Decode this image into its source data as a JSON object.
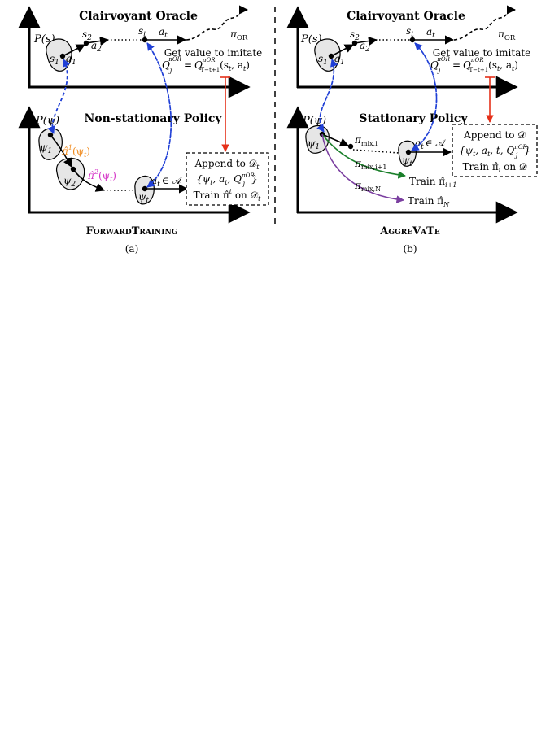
{
  "panel_a": {
    "oracle_title": "Clairvoyant Oracle",
    "oracle_axis_label": "P(s)",
    "s1": "s",
    "s1_sub": "1",
    "a1": "a",
    "a1_sub": "1",
    "s2": "s",
    "s2_sub": "2",
    "a2": "a",
    "a2_sub": "2",
    "st": "s",
    "st_sub": "t",
    "at": "a",
    "at_sub": "t",
    "pi_or": "π",
    "pi_or_sub": "OR",
    "get_value_text": "Get value to imitate",
    "q_text_lhs": "Q",
    "q_text_lhs_sub": "j",
    "q_text_lhs_sup": "πOR",
    "q_text_eq": "=",
    "q_text_rhs": "Q",
    "q_text_rhs_sub": "T−t+1",
    "q_text_rhs_sup": "πOR",
    "q_text_args": "(s",
    "q_text_args_sub": "t",
    "q_text_args_end": ", a",
    "q_text_args_sub2": "t",
    "q_text_close": ")",
    "policy_title": "Non-stationary Policy",
    "policy_axis_label": "P(ψ)",
    "psi1": "ψ",
    "psi1_sub": "1",
    "psi2": "ψ",
    "psi2_sub": "2",
    "psit": "ψ",
    "psit_sub": "t",
    "pi1": "π̂",
    "pi1_sup": "1",
    "pi1_arg": "(ψ",
    "pi1_arg_sub": "t",
    "pi1_close": ")",
    "pi2": "π̂",
    "pi2_sup": "2",
    "pi2_arg": "(ψ",
    "pi2_arg_sub": "t",
    "pi2_close": ")",
    "at_in_a": "a",
    "at_in_a_sub": "t",
    "at_in_a_rest": "∈ 𝒜",
    "box_line1": "Append to 𝒟",
    "box_line1_sub": "t",
    "box_line2": "{ψ",
    "box_line2_sub": "t",
    "box_line2_mid": ", a",
    "box_line2_sub2": "t",
    "box_line2_mid2": ", Q",
    "box_line2_sub3": "j",
    "box_line2_sup3": "πOR",
    "box_line2_end": "}",
    "box_line3": "Train π̂",
    "box_line3_sup": "t",
    "box_line3_end": " on 𝒟",
    "box_line3_sub": "t",
    "caption_name": "ForwardTraining",
    "caption_label": "(a)"
  },
  "panel_b": {
    "oracle_title": "Clairvoyant Oracle",
    "oracle_axis_label": "P(s)",
    "s1": "s",
    "s1_sub": "1",
    "a1": "a",
    "a1_sub": "1",
    "s2": "s",
    "s2_sub": "2",
    "a2": "a",
    "a2_sub": "2",
    "st": "s",
    "st_sub": "t",
    "at": "a",
    "at_sub": "t",
    "pi_or": "π",
    "pi_or_sub": "OR",
    "get_value_text": "Get value to imitate",
    "q_text_lhs": "Q",
    "q_text_lhs_sub": "j",
    "q_text_lhs_sup": "πOR",
    "q_text_eq": "=",
    "q_text_rhs": "Q",
    "q_text_rhs_sub": "T−t+1",
    "q_text_rhs_sup": "πOR",
    "q_text_args": "(s",
    "q_text_args_sub": "t",
    "q_text_args_end": ", a",
    "q_text_args_sub2": "t",
    "q_text_close": ")",
    "policy_title": "Stationary Policy",
    "policy_axis_label": "P(ψ)",
    "psi1": "ψ",
    "psi1_sub": "1",
    "psit": "ψ",
    "psit_sub": "t",
    "pi_mix_i": "π",
    "pi_mix_i_sub": "mix,i",
    "pi_mix_i1": "π",
    "pi_mix_i1_sub": "mix,i+1",
    "pi_mix_n": "π",
    "pi_mix_n_sub": "mix,N",
    "at_in_a": "a",
    "at_in_a_sub": "t",
    "at_in_a_rest": "∈ 𝒜",
    "train_i1": "Train π̂",
    "train_i1_sub": "i+1",
    "train_n": "Train π̂",
    "train_n_sub": "N",
    "box_line1": "Append to 𝒟",
    "box_line2": "{ψ",
    "box_line2_sub": "t",
    "box_line2_mid": ", a",
    "box_line2_sub2": "t",
    "box_line2_mid2": ", t, Q",
    "box_line2_sub3": "j",
    "box_line2_sup3": "πOR",
    "box_line2_end": "}",
    "box_line3": "Train π̂",
    "box_line3_sub": "i",
    "box_line3_end": " on 𝒟",
    "caption_name": "AggreVaTe",
    "caption_label": "(b)"
  },
  "colors": {
    "ink": "#000000",
    "blob_fill": "#e6e6e6",
    "dashed_blue": "#1f3fd6",
    "red": "#e53019",
    "orange": "#f08a1c",
    "magenta": "#d433c6",
    "green": "#1a7f2a",
    "purple": "#7b3fa0"
  }
}
